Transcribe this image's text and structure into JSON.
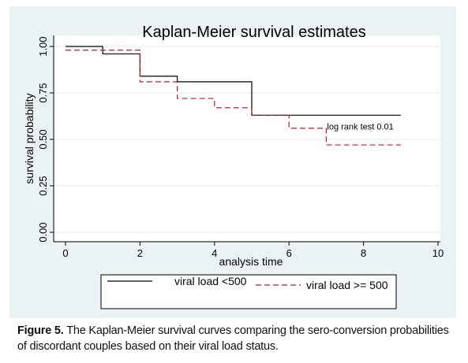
{
  "chart_data": {
    "type": "line",
    "step": true,
    "title": "Kaplan-Meier survival estimates",
    "xlabel": "analysis time",
    "ylabel": "survival probability",
    "xlim": [
      0,
      10
    ],
    "ylim": [
      0,
      1
    ],
    "xticks": [
      "0",
      "2",
      "4",
      "6",
      "8",
      "10"
    ],
    "yticks": [
      "0.00",
      "0.25",
      "0.50",
      "0.75",
      "1.00"
    ],
    "grid": true,
    "legend_position": "bottom",
    "series": [
      {
        "name": "viral load <500",
        "color": "#000000",
        "dash": "solid",
        "x": [
          0,
          1,
          2,
          3,
          5,
          9
        ],
        "y": [
          1.0,
          0.96,
          0.84,
          0.81,
          0.63,
          0.63
        ]
      },
      {
        "name": "viral load >= 500",
        "color": "#b0202a",
        "dash": "dashed",
        "x": [
          0,
          2,
          3,
          4,
          5,
          6,
          7,
          9
        ],
        "y": [
          0.98,
          0.81,
          0.72,
          0.67,
          0.63,
          0.56,
          0.47,
          0.47
        ]
      }
    ],
    "annotations": [
      {
        "text": "log rank test 0.01",
        "x": 7.0,
        "y": 0.57
      }
    ]
  },
  "caption": {
    "label": "Figure 5.",
    "text": " The Kaplan-Meier survival curves comparing the sero-conversion probabilities of discordant couples based on their viral load status."
  }
}
